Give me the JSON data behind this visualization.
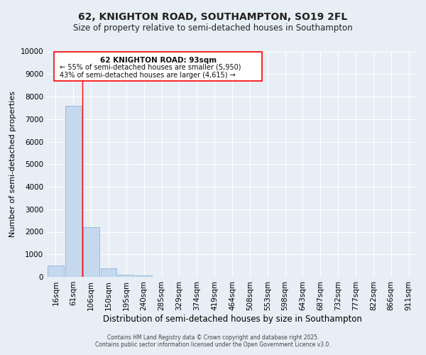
{
  "title": "62, KNIGHTON ROAD, SOUTHAMPTON, SO19 2FL",
  "subtitle": "Size of property relative to semi-detached houses in Southampton",
  "xlabel": "Distribution of semi-detached houses by size in Southampton",
  "ylabel": "Number of semi-detached properties",
  "footer_line1": "Contains HM Land Registry data © Crown copyright and database right 2025.",
  "footer_line2": "Contains public sector information licensed under the Open Government Licence v3.0.",
  "categories": [
    "16sqm",
    "61sqm",
    "106sqm",
    "150sqm",
    "195sqm",
    "240sqm",
    "285sqm",
    "329sqm",
    "374sqm",
    "419sqm",
    "464sqm",
    "508sqm",
    "553sqm",
    "598sqm",
    "643sqm",
    "687sqm",
    "732sqm",
    "777sqm",
    "822sqm",
    "866sqm",
    "911sqm"
  ],
  "values": [
    500,
    7600,
    2200,
    380,
    100,
    50,
    0,
    0,
    0,
    0,
    0,
    0,
    0,
    0,
    0,
    0,
    0,
    0,
    0,
    0,
    0
  ],
  "bar_color": "#c5d8ed",
  "bar_edge_color": "#7aaed4",
  "red_line_x": 1.5,
  "annotation_title": "62 KNIGHTON ROAD: 93sqm",
  "annotation_line1": "← 55% of semi-detached houses are smaller (5,950)",
  "annotation_line2": "43% of semi-detached houses are larger (4,615) →",
  "ylim": [
    0,
    10000
  ],
  "yticks": [
    0,
    1000,
    2000,
    3000,
    4000,
    5000,
    6000,
    7000,
    8000,
    9000,
    10000
  ],
  "background_color": "#e8eef5",
  "grid_color": "#ffffff",
  "title_fontsize": 10,
  "subtitle_fontsize": 8.5,
  "ylabel_fontsize": 8,
  "xlabel_fontsize": 8.5,
  "tick_fontsize": 7.5,
  "ann_fontsize_title": 7.5,
  "ann_fontsize_body": 7.0,
  "footer_fontsize": 5.5
}
